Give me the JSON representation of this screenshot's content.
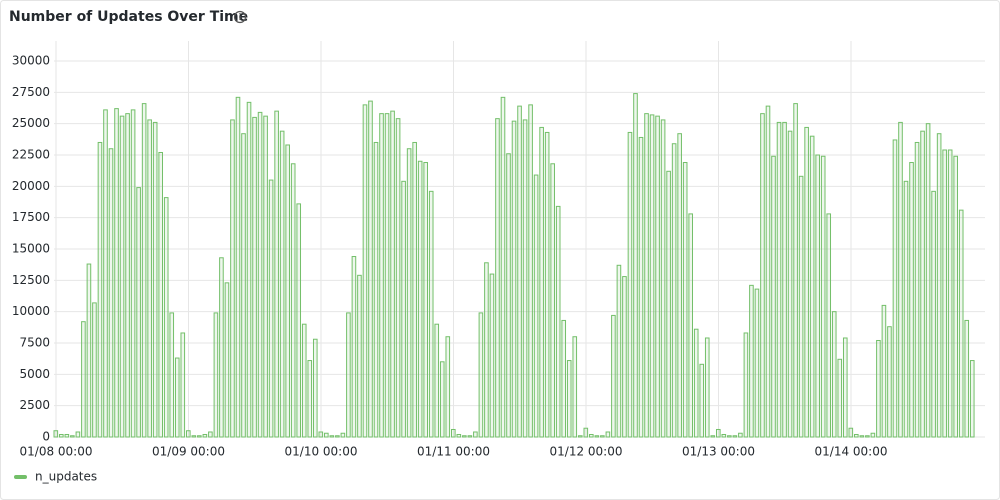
{
  "chart_data": {
    "type": "bar",
    "title": "Number of Updates Over Time",
    "categories": [
      "01/08 00:00",
      null,
      null,
      null,
      null,
      null,
      null,
      null,
      null,
      null,
      null,
      null,
      null,
      null,
      null,
      null,
      null,
      null,
      null,
      null,
      null,
      null,
      null,
      null,
      "01/09 00:00",
      null,
      null,
      null,
      null,
      null,
      null,
      null,
      null,
      null,
      null,
      null,
      null,
      null,
      null,
      null,
      null,
      null,
      null,
      null,
      null,
      null,
      null,
      null,
      "01/10 00:00",
      null,
      null,
      null,
      null,
      null,
      null,
      null,
      null,
      null,
      null,
      null,
      null,
      null,
      null,
      null,
      null,
      null,
      null,
      null,
      null,
      null,
      null,
      null,
      "01/11 00:00",
      null,
      null,
      null,
      null,
      null,
      null,
      null,
      null,
      null,
      null,
      null,
      null,
      null,
      null,
      null,
      null,
      null,
      null,
      null,
      null,
      null,
      null,
      null,
      "01/12 00:00",
      null,
      null,
      null,
      null,
      null,
      null,
      null,
      null,
      null,
      null,
      null,
      null,
      null,
      null,
      null,
      null,
      null,
      null,
      null,
      null,
      null,
      null,
      null,
      "01/13 00:00",
      null,
      null,
      null,
      null,
      null,
      null,
      null,
      null,
      null,
      null,
      null,
      null,
      null,
      null,
      null,
      null,
      null,
      null,
      null,
      null,
      null,
      null,
      null,
      "01/14 00:00",
      null,
      null,
      null,
      null,
      null,
      null,
      null,
      null,
      null,
      null,
      null,
      null,
      null,
      null,
      null,
      null,
      null,
      null,
      null,
      null,
      null,
      null
    ],
    "series": [
      {
        "name": "n_updates",
        "color": "#73bf69",
        "values": [
          500,
          200,
          200,
          100,
          400,
          9200,
          13800,
          10700,
          23500,
          26100,
          23000,
          26200,
          25600,
          25800,
          26100,
          19900,
          26600,
          25300,
          25100,
          22700,
          19100,
          9900,
          6300,
          8300,
          500,
          100,
          100,
          200,
          400,
          9900,
          14300,
          12300,
          25300,
          27100,
          24200,
          26700,
          25500,
          25900,
          25600,
          20500,
          26000,
          24400,
          23300,
          21800,
          18600,
          9000,
          6100,
          7800,
          400,
          300,
          100,
          100,
          300,
          9900,
          14400,
          12900,
          26500,
          26800,
          23500,
          25800,
          25800,
          26000,
          25400,
          20400,
          23000,
          23500,
          22000,
          21900,
          19600,
          9000,
          6000,
          8000,
          600,
          200,
          100,
          100,
          400,
          9900,
          13900,
          13000,
          25400,
          27100,
          22600,
          25200,
          26400,
          25300,
          26500,
          20900,
          24700,
          24300,
          21800,
          18400,
          9300,
          6100,
          8000,
          100,
          700,
          200,
          100,
          100,
          400,
          9700,
          13700,
          12800,
          24300,
          27400,
          23900,
          25800,
          25700,
          25600,
          25300,
          21200,
          23400,
          24200,
          21900,
          17800,
          8600,
          5800,
          7900,
          100,
          600,
          200,
          100,
          100,
          300,
          8300,
          12100,
          11800,
          25800,
          26400,
          22400,
          25100,
          25100,
          24400,
          26600,
          20800,
          24700,
          24000,
          22500,
          22400,
          17800,
          10000,
          6200,
          7900,
          700,
          200,
          100,
          100,
          300,
          7700,
          10500,
          8800,
          23700,
          25100,
          20400,
          21900,
          23500,
          24400,
          25000,
          19600,
          24200,
          22900,
          22900,
          22400,
          18100,
          9300,
          6100
        ]
      }
    ],
    "ylim": [
      0,
      30000
    ],
    "yticks": [
      0,
      2500,
      5000,
      7500,
      10000,
      12500,
      15000,
      17500,
      20000,
      22500,
      25000,
      27500,
      30000
    ],
    "grid": true
  }
}
